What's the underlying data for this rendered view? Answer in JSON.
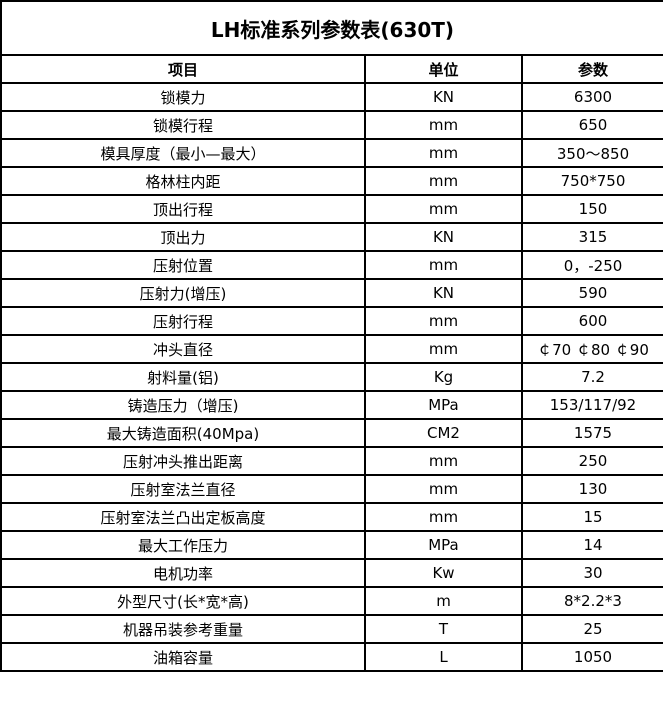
{
  "title": "LH标准系列参数表(630T)",
  "headers": [
    "项目",
    "单位",
    "参数"
  ],
  "rows": [
    [
      "锁模力",
      "KN",
      "6300"
    ],
    [
      "锁模行程",
      "mm",
      "650"
    ],
    [
      "模具厚度（最小—最大）",
      "mm",
      "350～850"
    ],
    [
      "格林柱内距",
      "mm",
      "750*750"
    ],
    [
      "顶出行程",
      "mm",
      "150"
    ],
    [
      "顶出力",
      "KN",
      "315"
    ],
    [
      "压射位置",
      "mm",
      "0，-250"
    ],
    [
      "压射力(增压)",
      "KN",
      "590"
    ],
    [
      "压射行程",
      "mm",
      "600"
    ],
    [
      "冲头直径",
      "mm",
      "￠70 ￠80 ￠90"
    ],
    [
      "射料量(铝)",
      "Kg",
      "7.2"
    ],
    [
      "铸造压力（增压)",
      "MPa",
      "153/117/92"
    ],
    [
      "最大铸造面积(40Mpa)",
      "CM2",
      "1575"
    ],
    [
      "压射冲头推出距离",
      "mm",
      "250"
    ],
    [
      "压射室法兰直径",
      "mm",
      "130"
    ],
    [
      "压射室法兰凸出定板高度",
      "mm",
      "15"
    ],
    [
      "最大工作压力",
      "MPa",
      "14"
    ],
    [
      "电机功率",
      "Kw",
      "30"
    ],
    [
      "外型尺寸(长*宽*高)",
      "m",
      "8*2.2*3"
    ],
    [
      "机器吊装参考重量",
      "T",
      "25"
    ],
    [
      "油箱容量",
      "L",
      "1050"
    ]
  ]
}
